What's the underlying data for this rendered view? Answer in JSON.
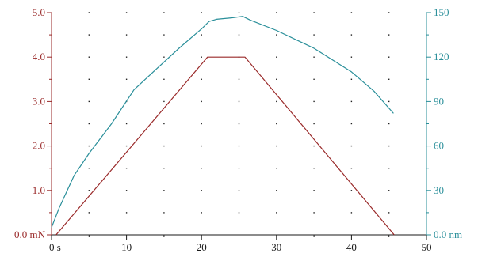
{
  "chart_data": {
    "type": "line",
    "grid": "dots",
    "x_axis": {
      "range": [
        0,
        50
      ],
      "ticks": [
        0,
        10,
        20,
        30,
        40,
        50
      ],
      "tick_labels": [
        "0 s",
        "10",
        "20",
        "30",
        "40",
        "50"
      ]
    },
    "y_left": {
      "range": [
        0,
        5
      ],
      "ticks": [
        0,
        1,
        2,
        3,
        4,
        5
      ],
      "tick_labels": [
        "0.0 mN",
        "1.0",
        "2.0",
        "3.0",
        "4.0",
        "5.0"
      ],
      "color": "#9a2a2a"
    },
    "y_right": {
      "range": [
        0,
        150
      ],
      "ticks": [
        0,
        30,
        60,
        90,
        120,
        150
      ],
      "tick_labels": [
        "0.0 nm",
        "30",
        "60",
        "90",
        "120",
        "150"
      ],
      "color": "#2a8f9a"
    },
    "series": [
      {
        "axis": "left",
        "color": "#9a2a2a",
        "x": [
          0.6,
          20.8,
          25.8,
          45.7
        ],
        "y": [
          0.0,
          4.0,
          4.0,
          0.0
        ]
      },
      {
        "axis": "right",
        "color": "#2a8f9a",
        "x": [
          0.0,
          1.0,
          3.0,
          5.0,
          8.0,
          11.0,
          14.0,
          17.0,
          20.0,
          21.0,
          22.0,
          24.0,
          25.5,
          26.5,
          30.0,
          35.0,
          40.0,
          43.0,
          45.6
        ],
        "y": [
          5,
          18,
          40,
          55,
          75,
          98,
          112,
          126,
          139,
          144,
          145.5,
          146.5,
          147.5,
          145,
          138,
          126,
          110,
          97,
          82
        ]
      }
    ]
  }
}
